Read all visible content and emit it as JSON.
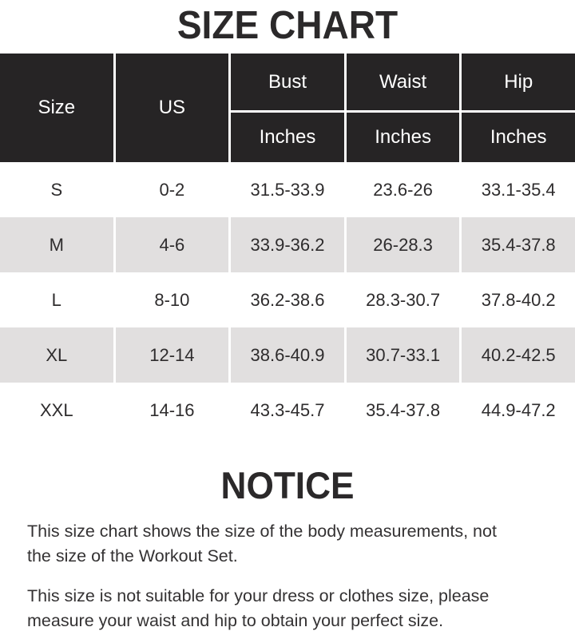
{
  "page": {
    "title": "SIZE CHART",
    "background": "#ffffff"
  },
  "colors": {
    "header_bg": "#262425",
    "header_text": "#ffffff",
    "alt_row_bg": "#e1dfdf",
    "heading_text": "#2b292a",
    "body_text": "#343233",
    "divider": "#ffffff"
  },
  "chart_data": {
    "type": "table",
    "title": "SIZE CHART",
    "header": {
      "size": "Size",
      "us": "US",
      "groups": [
        {
          "name": "Bust",
          "unit": "Inches"
        },
        {
          "name": "Waist",
          "unit": "Inches"
        },
        {
          "name": "Hip",
          "unit": "Inches"
        }
      ]
    },
    "rows": [
      {
        "size": "S",
        "us": "0-2",
        "bust": "31.5-33.9",
        "waist": "23.6-26",
        "hip": "33.1-35.4"
      },
      {
        "size": "M",
        "us": "4-6",
        "bust": "33.9-36.2",
        "waist": "26-28.3",
        "hip": "35.4-37.8"
      },
      {
        "size": "L",
        "us": "8-10",
        "bust": "36.2-38.6",
        "waist": "28.3-30.7",
        "hip": "37.8-40.2"
      },
      {
        "size": "XL",
        "us": "12-14",
        "bust": "38.6-40.9",
        "waist": "30.7-33.1",
        "hip": "40.2-42.5"
      },
      {
        "size": "XXL",
        "us": "14-16",
        "bust": "43.3-45.7",
        "waist": "35.4-37.8",
        "hip": "44.9-47.2"
      }
    ]
  },
  "notice": {
    "title": "NOTICE",
    "paragraphs": [
      {
        "text": "This size chart shows the size of the body measurements, not the size of the Workout Set.",
        "lines": [
          "This size chart shows the size of the body measurements, not",
          "the size of the Workout Set."
        ]
      },
      {
        "text": "This size is not suitable for your dress or clothes size, please measure your waist and hip to obtain your perfect size.",
        "lines": [
          "This size is not suitable for your dress or clothes size, please",
          "measure your waist and hip to obtain your perfect size."
        ]
      }
    ]
  }
}
